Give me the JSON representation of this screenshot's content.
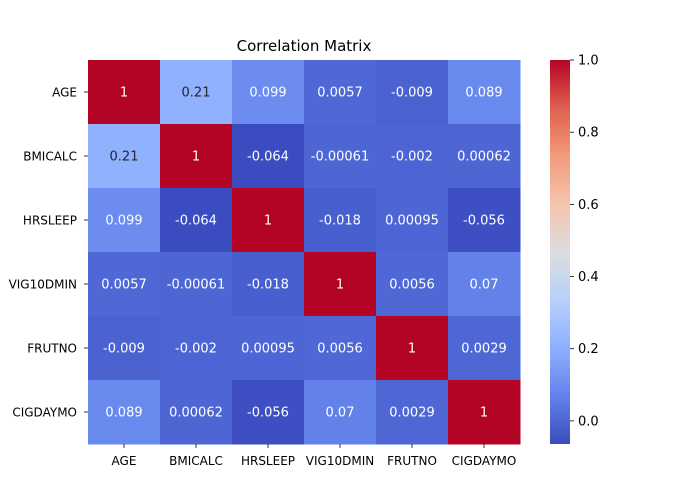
{
  "chart_data": {
    "type": "heatmap",
    "title": "Correlation Matrix",
    "xlabel": "",
    "ylabel": "",
    "variables": [
      "AGE",
      "BMICALC",
      "HRSLEEP",
      "VIG10DMIN",
      "FRUTNO",
      "CIGDAYMO"
    ],
    "values": [
      [
        1,
        0.21,
        0.099,
        0.0057,
        -0.009,
        0.089
      ],
      [
        0.21,
        1,
        -0.064,
        -0.00061,
        -0.002,
        0.00062
      ],
      [
        0.099,
        -0.064,
        1,
        -0.018,
        0.00095,
        -0.056
      ],
      [
        0.0057,
        -0.00061,
        -0.018,
        1,
        0.0056,
        0.07
      ],
      [
        -0.009,
        -0.002,
        0.00095,
        0.0056,
        1,
        0.0029
      ],
      [
        0.089,
        0.00062,
        -0.056,
        0.07,
        0.0029,
        1
      ]
    ],
    "value_labels": [
      [
        "1",
        "0.21",
        "0.099",
        "0.0057",
        "-0.009",
        "0.089"
      ],
      [
        "0.21",
        "1",
        "-0.064",
        "-0.00061",
        "-0.002",
        "0.00062"
      ],
      [
        "0.099",
        "-0.064",
        "1",
        "-0.018",
        "0.00095",
        "-0.056"
      ],
      [
        "0.0057",
        "-0.00061",
        "-0.018",
        "1",
        "0.0056",
        "0.07"
      ],
      [
        "-0.009",
        "-0.002",
        "0.00095",
        "0.0056",
        "1",
        "0.0029"
      ],
      [
        "0.089",
        "0.00062",
        "-0.056",
        "0.07",
        "0.0029",
        "1"
      ]
    ],
    "colormap": "coolwarm",
    "vmin": -0.064,
    "vmax": 1,
    "colorbar_ticks": [
      0.0,
      0.2,
      0.4,
      0.6,
      0.8,
      1.0
    ],
    "colorbar_tick_labels": [
      "0.0",
      "0.2",
      "0.4",
      "0.6",
      "0.8",
      "1.0"
    ]
  }
}
